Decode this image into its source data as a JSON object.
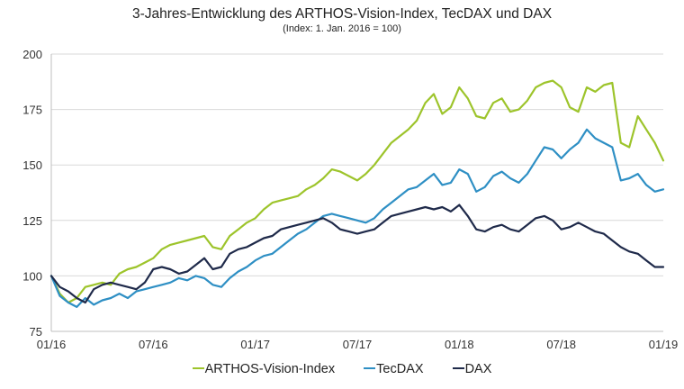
{
  "chart_data": {
    "type": "line",
    "title": "3-Jahres-Entwicklung des ARTHOS-Vision-Index, TecDAX und DAX",
    "subtitle": "(Index: 1. Jan. 2016 = 100)",
    "xlabel": "",
    "ylabel": "",
    "ylim": [
      75,
      200
    ],
    "yticks": [
      75,
      100,
      125,
      150,
      175,
      200
    ],
    "xlim": [
      0,
      36
    ],
    "x_unit": "months since 01/2016",
    "xticks": [
      {
        "value": 0,
        "label": "01/16"
      },
      {
        "value": 6,
        "label": "07/16"
      },
      {
        "value": 12,
        "label": "01/17"
      },
      {
        "value": 18,
        "label": "07/17"
      },
      {
        "value": 24,
        "label": "01/18"
      },
      {
        "value": 30,
        "label": "07/18"
      },
      {
        "value": 36,
        "label": "01/19"
      }
    ],
    "grid": "horizontal",
    "legend_position": "bottom-center",
    "x": [
      0,
      0.5,
      1,
      1.5,
      2,
      2.5,
      3,
      3.5,
      4,
      4.5,
      5,
      5.5,
      6,
      6.5,
      7,
      7.5,
      8,
      8.5,
      9,
      9.5,
      10,
      10.5,
      11,
      11.5,
      12,
      12.5,
      13,
      13.5,
      14,
      14.5,
      15,
      15.5,
      16,
      16.5,
      17,
      17.5,
      18,
      18.5,
      19,
      19.5,
      20,
      20.5,
      21,
      21.5,
      22,
      22.5,
      23,
      23.5,
      24,
      24.5,
      25,
      25.5,
      26,
      26.5,
      27,
      27.5,
      28,
      28.5,
      29,
      29.5,
      30,
      30.5,
      31,
      31.5,
      32,
      32.5,
      33,
      33.5,
      34,
      34.5,
      35,
      35.5,
      36
    ],
    "series": [
      {
        "name": "ARTHOS-Vision-Index",
        "color": "#9DC42B",
        "values": [
          100,
          92,
          88,
          90,
          95,
          96,
          97,
          96,
          101,
          103,
          104,
          106,
          108,
          112,
          114,
          115,
          116,
          117,
          118,
          113,
          112,
          118,
          121,
          124,
          126,
          130,
          133,
          134,
          135,
          136,
          139,
          141,
          144,
          148,
          147,
          145,
          143,
          146,
          150,
          155,
          160,
          163,
          166,
          170,
          178,
          182,
          173,
          176,
          185,
          180,
          172,
          171,
          178,
          180,
          174,
          175,
          179,
          185,
          187,
          188,
          185,
          176,
          174,
          185,
          183,
          186,
          187,
          160,
          158,
          172,
          166,
          160,
          152
        ]
      },
      {
        "name": "TecDAX",
        "color": "#2E8FC4",
        "values": [
          100,
          91,
          88,
          86,
          90,
          87,
          89,
          90,
          92,
          90,
          93,
          94,
          95,
          96,
          97,
          99,
          98,
          100,
          99,
          96,
          95,
          99,
          102,
          104,
          107,
          109,
          110,
          113,
          116,
          119,
          121,
          124,
          127,
          128,
          127,
          126,
          125,
          124,
          126,
          130,
          133,
          136,
          139,
          140,
          143,
          146,
          141,
          142,
          148,
          146,
          138,
          140,
          145,
          147,
          144,
          142,
          146,
          152,
          158,
          157,
          153,
          157,
          160,
          166,
          162,
          160,
          158,
          143,
          144,
          146,
          141,
          138,
          139
        ]
      },
      {
        "name": "DAX",
        "color": "#1F2A4A",
        "values": [
          100,
          95,
          93,
          90,
          88,
          94,
          96,
          97,
          96,
          95,
          94,
          97,
          103,
          104,
          103,
          101,
          102,
          105,
          108,
          103,
          104,
          110,
          112,
          113,
          115,
          117,
          118,
          121,
          122,
          123,
          124,
          125,
          126,
          124,
          121,
          120,
          119,
          120,
          121,
          124,
          127,
          128,
          129,
          130,
          131,
          130,
          131,
          129,
          132,
          127,
          121,
          120,
          122,
          123,
          121,
          120,
          123,
          126,
          127,
          125,
          121,
          122,
          124,
          122,
          120,
          119,
          116,
          113,
          111,
          110,
          107,
          104,
          104
        ]
      }
    ]
  }
}
